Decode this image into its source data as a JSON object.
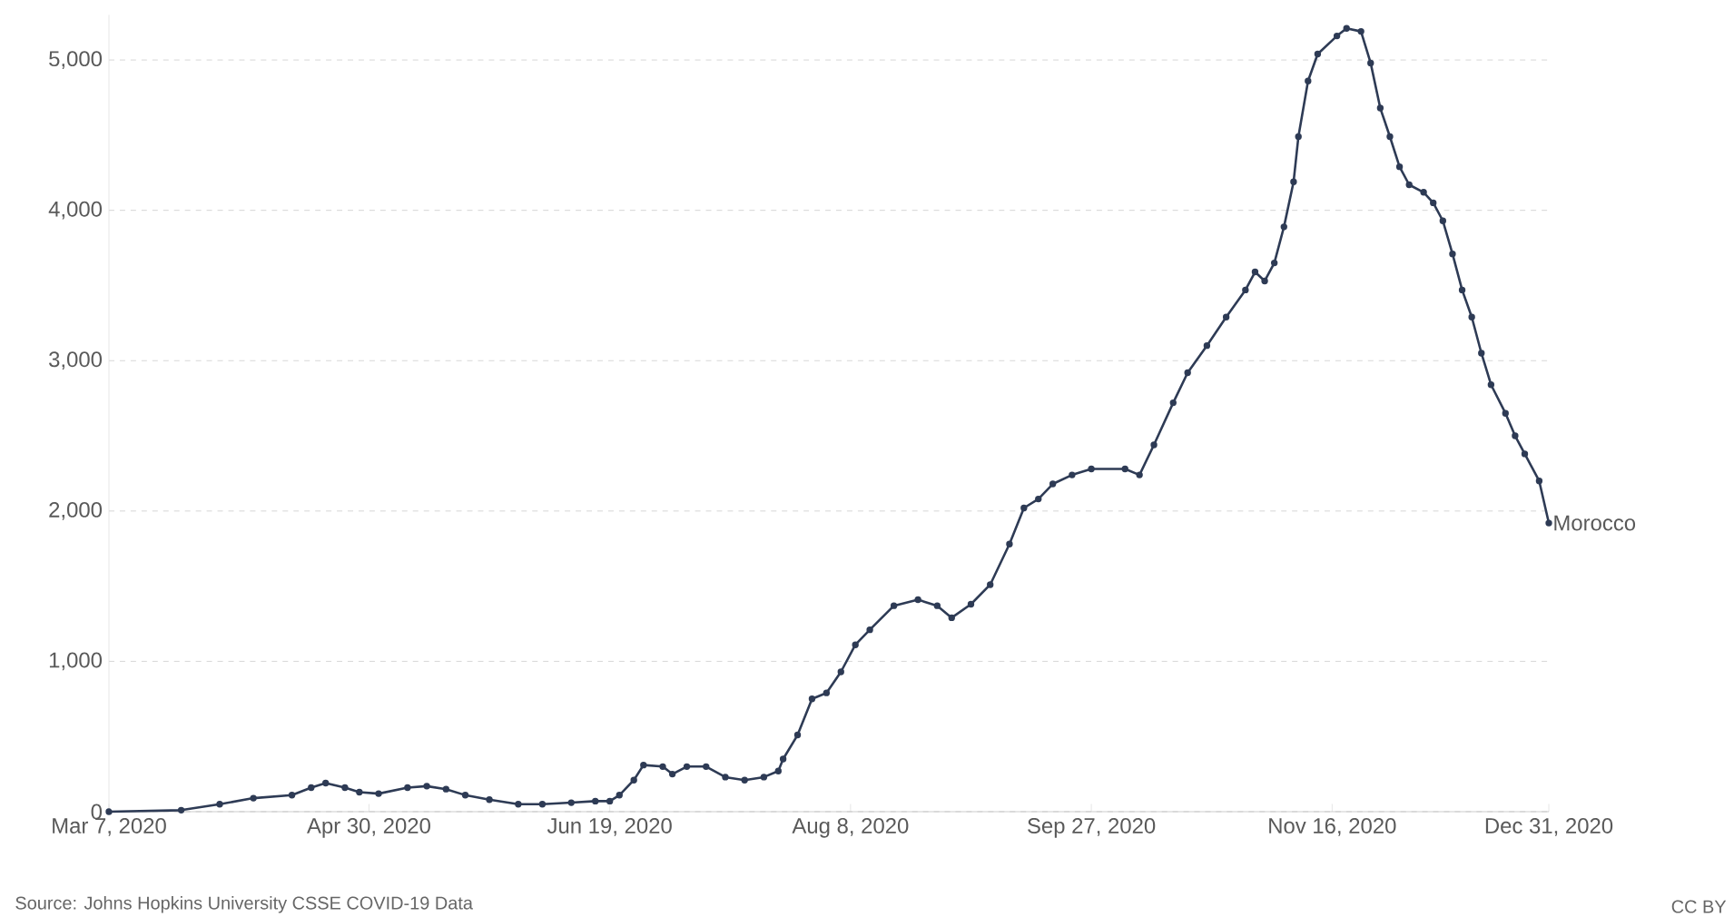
{
  "chart_data": {
    "type": "line",
    "x": [
      "2020-03-07",
      "2020-03-22",
      "2020-03-30",
      "2020-04-06",
      "2020-04-14",
      "2020-04-18",
      "2020-04-21",
      "2020-04-25",
      "2020-04-28",
      "2020-05-02",
      "2020-05-08",
      "2020-05-12",
      "2020-05-16",
      "2020-05-20",
      "2020-05-25",
      "2020-05-31",
      "2020-06-05",
      "2020-06-11",
      "2020-06-16",
      "2020-06-19",
      "2020-06-21",
      "2020-06-24",
      "2020-06-26",
      "2020-06-30",
      "2020-07-02",
      "2020-07-05",
      "2020-07-09",
      "2020-07-13",
      "2020-07-17",
      "2020-07-21",
      "2020-07-24",
      "2020-07-25",
      "2020-07-28",
      "2020-07-31",
      "2020-08-03",
      "2020-08-06",
      "2020-08-09",
      "2020-08-12",
      "2020-08-17",
      "2020-08-22",
      "2020-08-26",
      "2020-08-29",
      "2020-09-02",
      "2020-09-06",
      "2020-09-10",
      "2020-09-13",
      "2020-09-16",
      "2020-09-19",
      "2020-09-23",
      "2020-09-27",
      "2020-10-04",
      "2020-10-07",
      "2020-10-10",
      "2020-10-14",
      "2020-10-17",
      "2020-10-21",
      "2020-10-25",
      "2020-10-29",
      "2020-10-31",
      "2020-11-02",
      "2020-11-04",
      "2020-11-06",
      "2020-11-08",
      "2020-11-09",
      "2020-11-11",
      "2020-11-13",
      "2020-11-17",
      "2020-11-19",
      "2020-11-22",
      "2020-11-24",
      "2020-11-26",
      "2020-11-28",
      "2020-11-30",
      "2020-12-02",
      "2020-12-05",
      "2020-12-07",
      "2020-12-09",
      "2020-12-11",
      "2020-12-13",
      "2020-12-15",
      "2020-12-17",
      "2020-12-19",
      "2020-12-22",
      "2020-12-24",
      "2020-12-26",
      "2020-12-29",
      "2020-12-31"
    ],
    "series": [
      {
        "name": "Morocco",
        "color": "#2e3b55",
        "values": [
          0,
          10,
          50,
          90,
          110,
          160,
          190,
          160,
          130,
          120,
          160,
          170,
          150,
          110,
          80,
          50,
          50,
          60,
          70,
          70,
          110,
          210,
          310,
          300,
          250,
          300,
          300,
          230,
          210,
          230,
          270,
          350,
          510,
          750,
          790,
          930,
          1110,
          1210,
          1370,
          1410,
          1370,
          1290,
          1380,
          1510,
          1780,
          2020,
          2080,
          2180,
          2240,
          2280,
          2280,
          2240,
          2440,
          2720,
          2920,
          3100,
          3290,
          3470,
          3590,
          3530,
          3650,
          3890,
          4190,
          4490,
          4860,
          5040,
          5160,
          5210,
          5190,
          4980,
          4680,
          4490,
          4290,
          4170,
          4120,
          4050,
          3930,
          3710,
          3470,
          3290,
          3050,
          2840,
          2650,
          2500,
          2380,
          2200,
          1920
        ]
      }
    ],
    "xlim": [
      "2020-03-07",
      "2020-12-31"
    ],
    "xticks": [
      {
        "value": "2020-03-07",
        "label": "Mar 7, 2020"
      },
      {
        "value": "2020-04-30",
        "label": "Apr 30, 2020"
      },
      {
        "value": "2020-06-19",
        "label": "Jun 19, 2020"
      },
      {
        "value": "2020-08-08",
        "label": "Aug 8, 2020"
      },
      {
        "value": "2020-09-27",
        "label": "Sep 27, 2020"
      },
      {
        "value": "2020-11-16",
        "label": "Nov 16, 2020"
      },
      {
        "value": "2020-12-31",
        "label": "Dec 31, 2020"
      }
    ],
    "ylim": [
      0,
      5300
    ],
    "yticks": [
      0,
      {
        "value": 1000,
        "label": "1,000"
      },
      {
        "value": 2000,
        "label": "2,000"
      },
      {
        "value": 3000,
        "label": "3,000"
      },
      {
        "value": 4000,
        "label": "4,000"
      },
      {
        "value": 5000,
        "label": "5,000"
      }
    ],
    "grid": "y",
    "marker": "circle",
    "line_style": "solid",
    "annotations": [
      "Source: Johns Hopkins University CSSE COVID-19 Data",
      "CC BY"
    ]
  }
}
